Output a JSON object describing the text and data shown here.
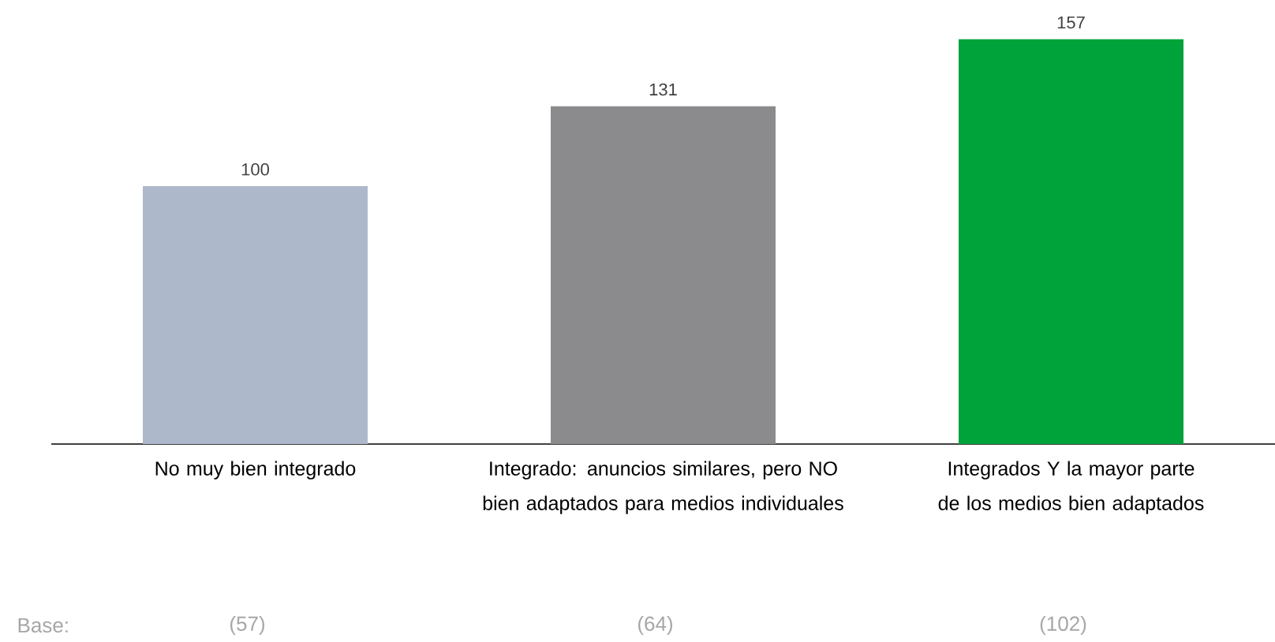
{
  "chart_data": {
    "type": "bar",
    "categories": [
      "No muy bien integrado",
      "Integrado: anuncios similares, pero NO bien adaptados para medios individuales",
      "Integrados Y la mayor parte de los medios bien adaptados"
    ],
    "values": [
      100,
      131,
      157
    ],
    "colors": [
      "#adb9ca",
      "#8b8b8d",
      "#00a33a"
    ],
    "data_labels": true,
    "annotations": [
      "Base:",
      "(57)",
      "(64)",
      "(102)"
    ]
  }
}
